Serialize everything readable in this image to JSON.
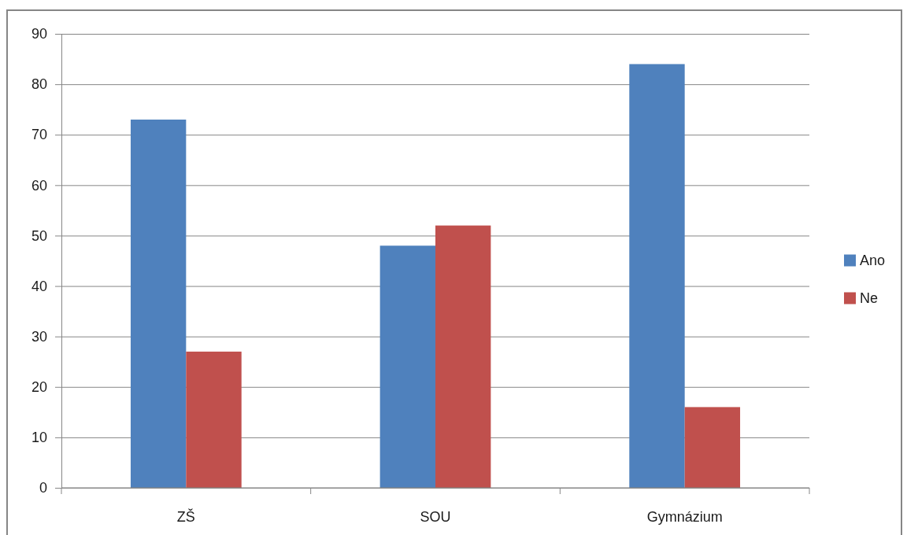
{
  "chart_data": {
    "type": "bar",
    "categories": [
      "ZŠ",
      "SOU",
      "Gymnázium"
    ],
    "series": [
      {
        "name": "Ano",
        "color": "#4f81bd",
        "values": [
          73,
          48,
          84
        ]
      },
      {
        "name": "Ne",
        "color": "#c0504d",
        "values": [
          27,
          52,
          16
        ]
      }
    ],
    "ylim": [
      0,
      90
    ],
    "yticks": [
      0,
      10,
      20,
      30,
      40,
      50,
      60,
      70,
      80,
      90
    ],
    "grid": "y",
    "legend": "right"
  }
}
